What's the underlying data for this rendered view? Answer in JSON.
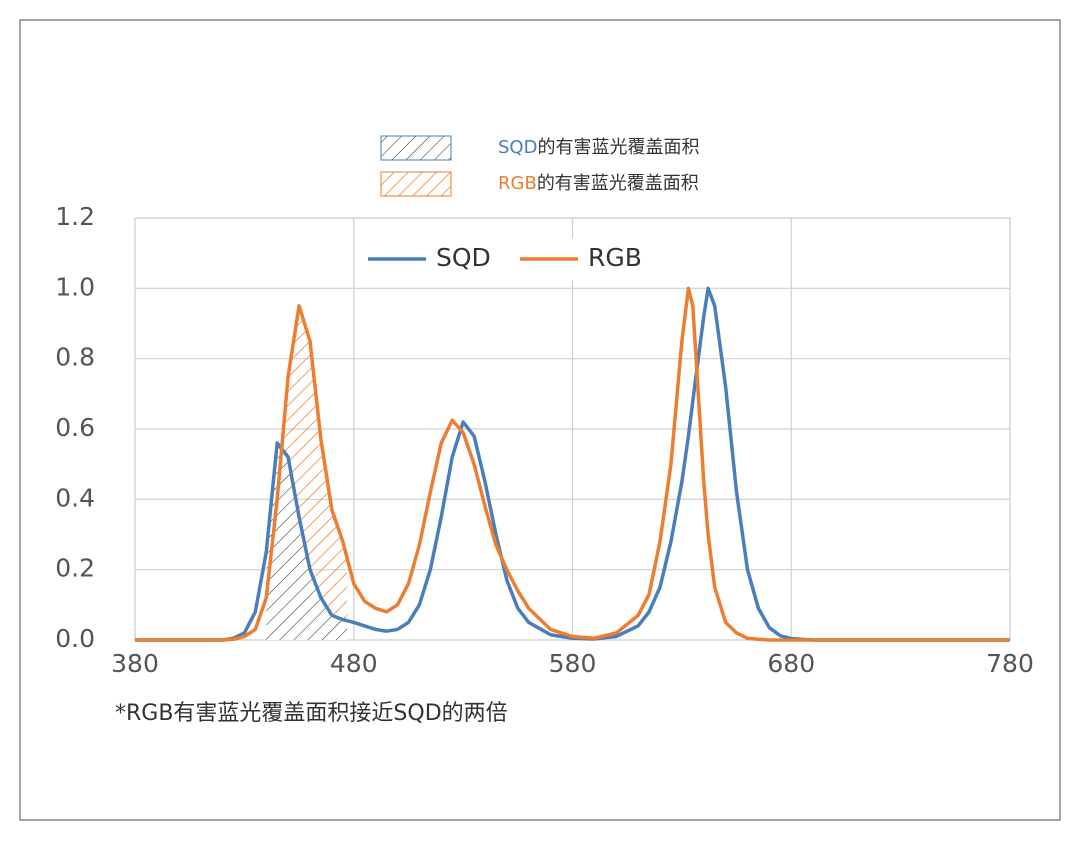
{
  "chart_data": {
    "type": "line",
    "x": [
      380,
      400,
      420,
      425,
      430,
      435,
      440,
      445,
      450,
      455,
      460,
      465,
      470,
      475,
      480,
      485,
      490,
      495,
      500,
      505,
      510,
      515,
      520,
      525,
      530,
      535,
      540,
      545,
      550,
      555,
      560,
      570,
      580,
      590,
      600,
      610,
      615,
      620,
      625,
      630,
      633,
      635,
      640,
      642,
      645,
      650,
      655,
      660,
      665,
      670,
      675,
      680,
      690,
      700,
      780
    ],
    "series": [
      {
        "name": "SQD",
        "color": "#4a7ebb",
        "values": [
          0,
          0,
          0,
          0.005,
          0.02,
          0.08,
          0.25,
          0.56,
          0.52,
          0.35,
          0.2,
          0.12,
          0.07,
          0.058,
          0.05,
          0.04,
          0.03,
          0.025,
          0.03,
          0.05,
          0.1,
          0.2,
          0.35,
          0.52,
          0.62,
          0.58,
          0.45,
          0.3,
          0.17,
          0.09,
          0.05,
          0.015,
          0.005,
          0.003,
          0.01,
          0.04,
          0.08,
          0.15,
          0.28,
          0.45,
          0.58,
          0.68,
          0.92,
          1.0,
          0.95,
          0.72,
          0.42,
          0.2,
          0.09,
          0.035,
          0.012,
          0.004,
          0,
          0,
          0
        ]
      },
      {
        "name": "RGB",
        "color": "#ed7d31",
        "values": [
          0,
          0,
          0,
          0.002,
          0.01,
          0.03,
          0.12,
          0.4,
          0.75,
          0.95,
          0.85,
          0.57,
          0.37,
          0.28,
          0.16,
          0.11,
          0.09,
          0.08,
          0.1,
          0.16,
          0.27,
          0.42,
          0.56,
          0.625,
          0.59,
          0.5,
          0.38,
          0.27,
          0.2,
          0.14,
          0.09,
          0.03,
          0.01,
          0.005,
          0.02,
          0.07,
          0.13,
          0.28,
          0.5,
          0.85,
          1.0,
          0.95,
          0.45,
          0.3,
          0.15,
          0.05,
          0.02,
          0.005,
          0.002,
          0,
          0,
          0,
          0,
          0,
          0
        ]
      }
    ],
    "xlim": [
      380,
      780
    ],
    "xticks": [
      380,
      480,
      580,
      680,
      780
    ],
    "ylim": [
      0,
      1.2
    ],
    "yticks": [
      {
        "value": 0,
        "label": "0.0"
      },
      {
        "value": 0.2,
        "label": "0.2"
      },
      {
        "value": 0.4,
        "label": "0.4"
      },
      {
        "value": 0.6,
        "label": "0.6"
      },
      {
        "value": 0.8,
        "label": "0.8"
      },
      {
        "value": 1,
        "label": "1.0"
      },
      {
        "value": 1.2,
        "label": "1.2"
      }
    ],
    "grid": true,
    "hatch_xlim": [
      440,
      477
    ],
    "area_label": "的有害蓝光覆盖面积",
    "footnote": "*RGB有害蓝光覆盖面积接近SQD的两倍"
  }
}
